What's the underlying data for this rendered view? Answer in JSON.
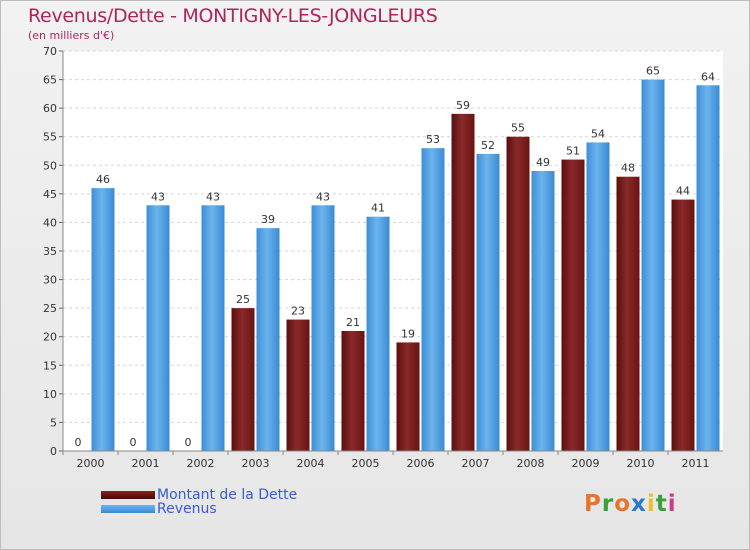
{
  "title": "Revenus/Dette - MONTIGNY-LES-JONGLEURS",
  "subtitle": "(en milliers d'€)",
  "logo": "Proxiti",
  "colors": {
    "dette": "#7a1a1a",
    "revenus": "#4a9fe0",
    "title": "#b0245a",
    "legend_text": "#3a5bd0"
  },
  "legend": [
    {
      "label": "Montant de la Dette",
      "color": "#6e1414"
    },
    {
      "label": "Revenus",
      "color": "#4a9fe0"
    }
  ],
  "chart_data": {
    "type": "bar",
    "title": "Revenus/Dette - MONTIGNY-LES-JONGLEURS",
    "subtitle": "(en milliers d'€)",
    "categories": [
      "2000",
      "2001",
      "2002",
      "2003",
      "2004",
      "2005",
      "2006",
      "2007",
      "2008",
      "2009",
      "2010",
      "2011"
    ],
    "series": [
      {
        "name": "Montant de la Dette",
        "values": [
          0,
          0,
          0,
          25,
          23,
          21,
          19,
          59,
          55,
          51,
          48,
          44
        ]
      },
      {
        "name": "Revenus",
        "values": [
          46,
          43,
          43,
          39,
          43,
          41,
          53,
          52,
          49,
          54,
          65,
          64
        ]
      }
    ],
    "ylim": [
      0,
      70
    ],
    "yticks": [
      0,
      5,
      10,
      15,
      20,
      25,
      30,
      35,
      40,
      45,
      50,
      55,
      60,
      65,
      70
    ],
    "grid": true,
    "legend_position": "bottom-left"
  }
}
